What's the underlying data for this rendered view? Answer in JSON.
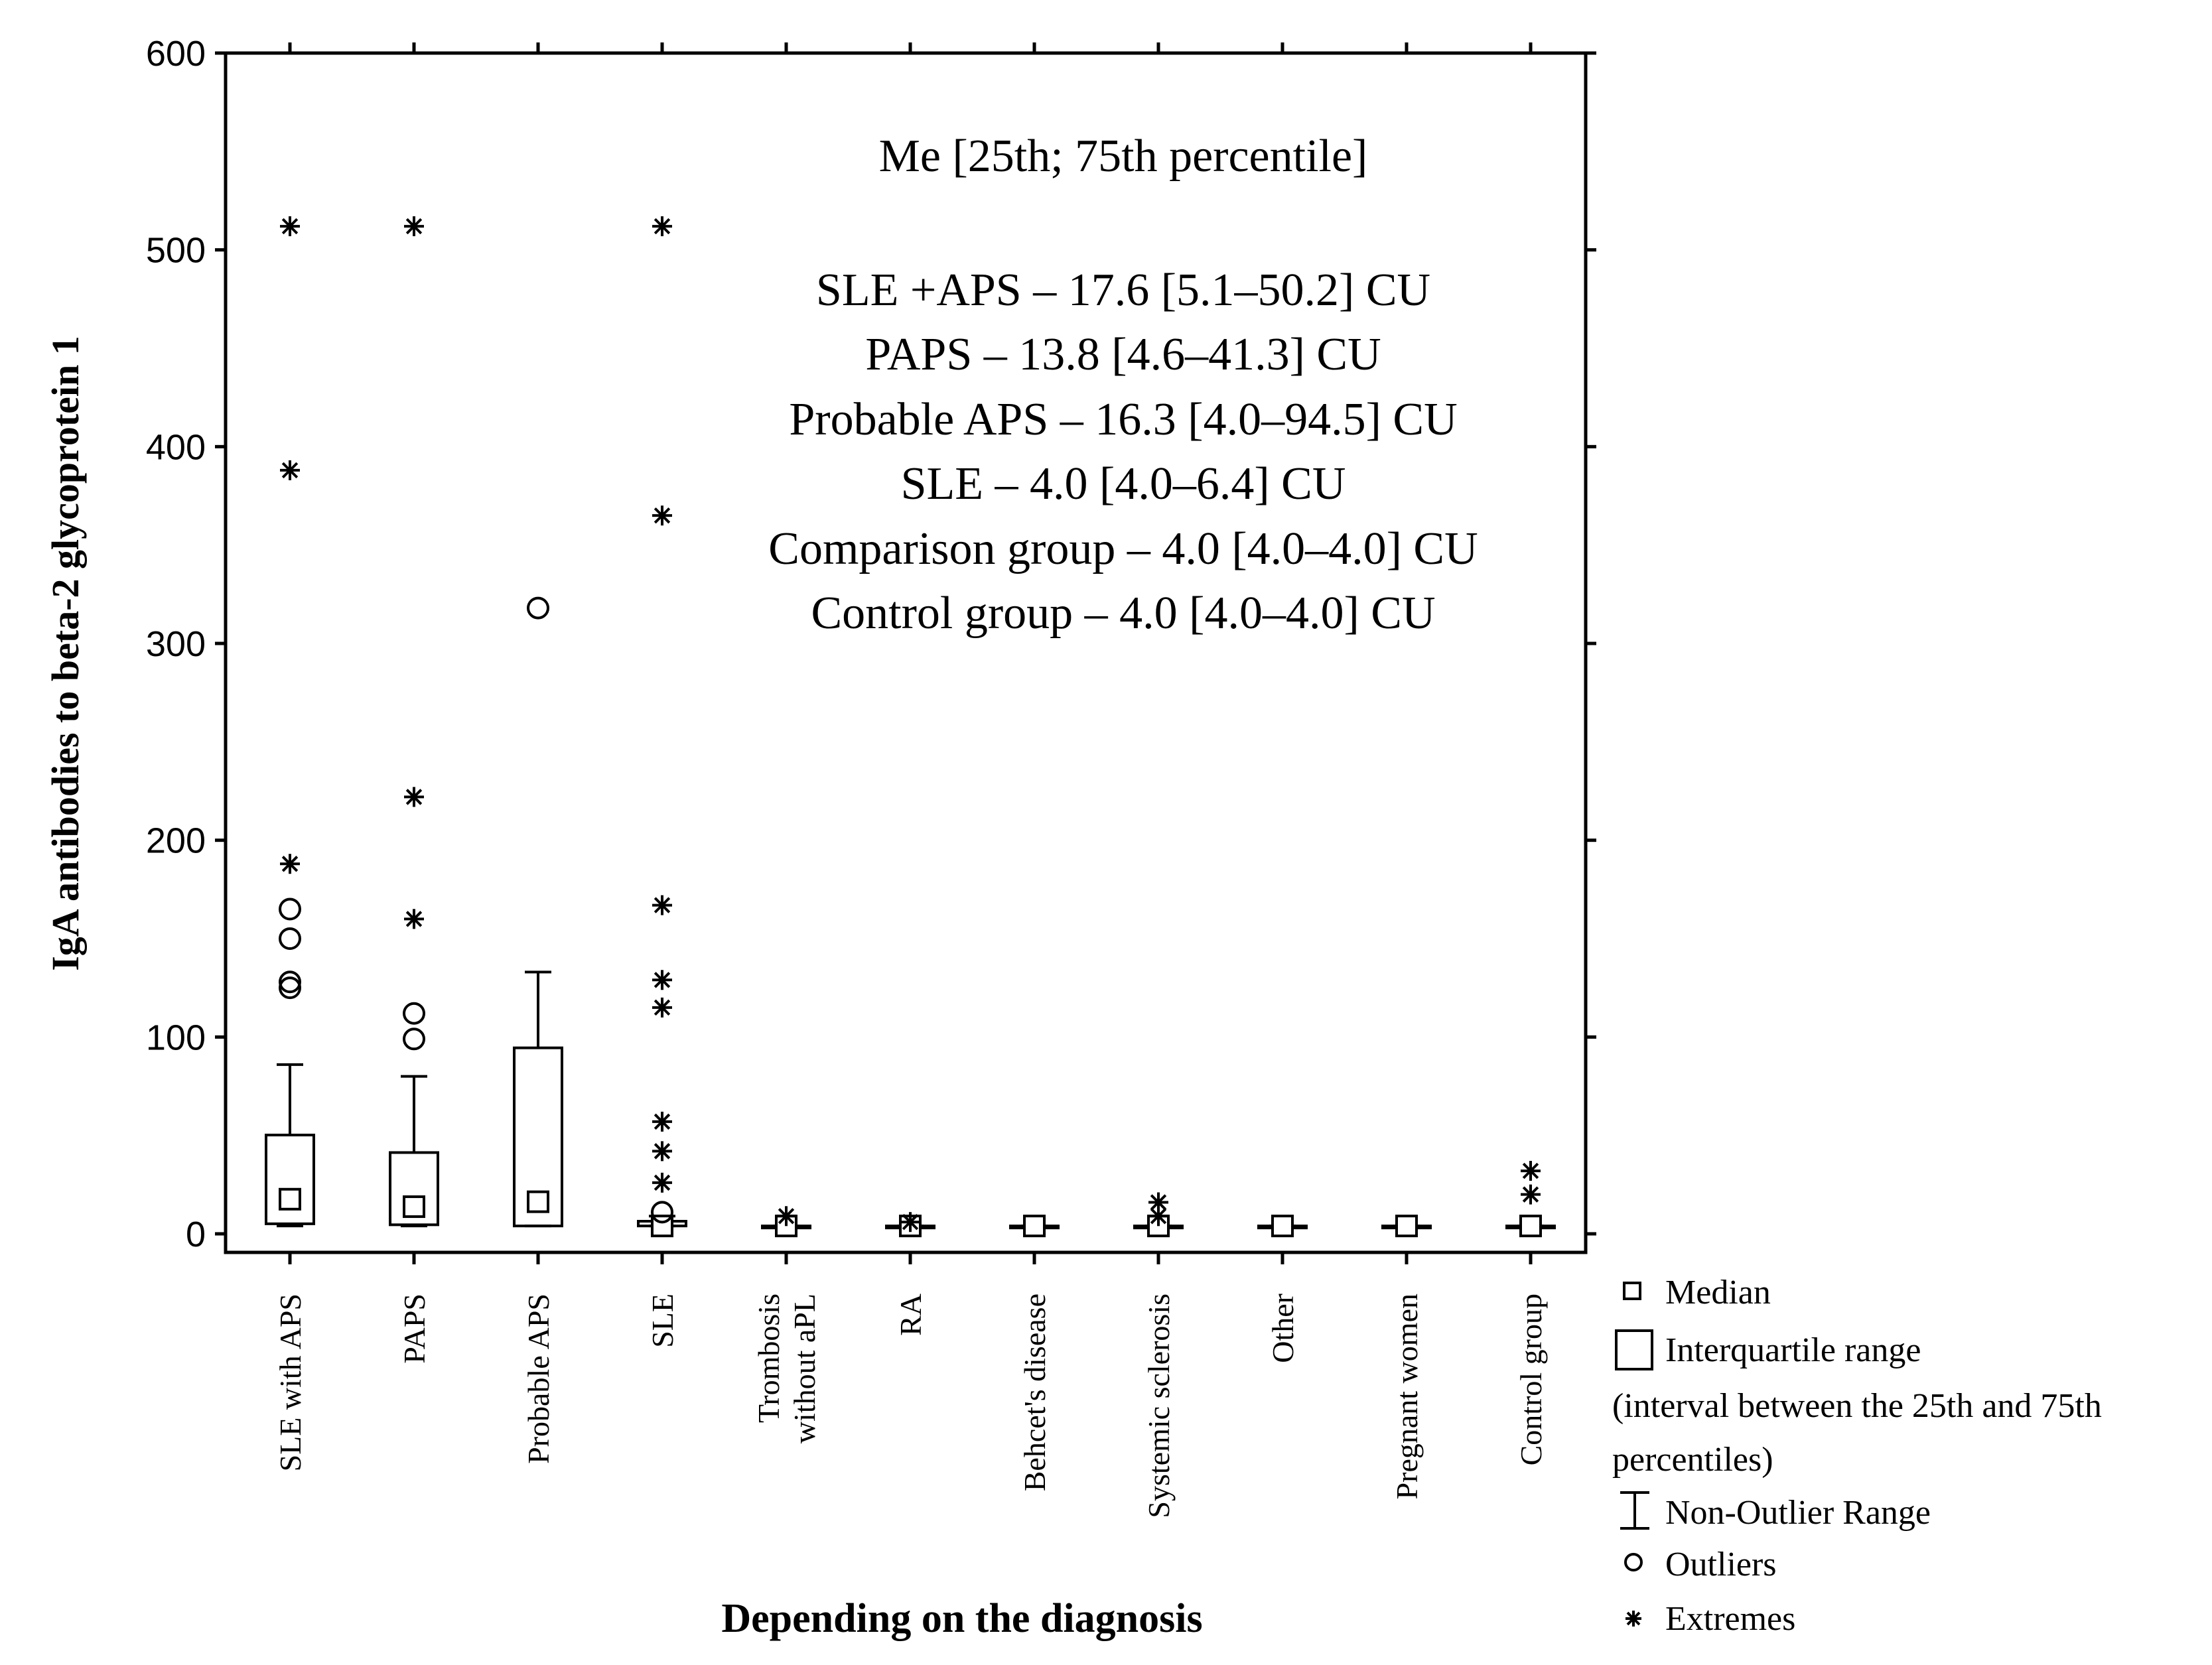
{
  "chart_data": {
    "type": "box",
    "title": "",
    "xlabel": "Depending on the diagnosis",
    "ylabel": "IgA  antibodies to beta-2 glycoprotein 1",
    "ylim": [
      0,
      600
    ],
    "yticks": [
      "0",
      "100",
      "200",
      "300",
      "400",
      "500",
      "600"
    ],
    "ytick_values": [
      0,
      100,
      200,
      300,
      400,
      500,
      600
    ],
    "grid": false,
    "categories": [
      [
        "SLE with APS"
      ],
      [
        "PAPS"
      ],
      [
        "Probable APS"
      ],
      [
        "SLE"
      ],
      [
        "Trombosis",
        "without aPL"
      ],
      [
        "RA"
      ],
      [
        "Behcet's disease"
      ],
      [
        "Systemic sclerosis"
      ],
      [
        "Other"
      ],
      [
        "Pregnant women"
      ],
      [
        "Control group"
      ]
    ],
    "boxes": [
      {
        "median": 17.6,
        "q1": 5.1,
        "q3": 50.2,
        "whisker_low": 4.0,
        "whisker_high": 86,
        "outliers": [
          125,
          128,
          150,
          165
        ],
        "extremes": [
          188,
          388,
          512
        ]
      },
      {
        "median": 13.8,
        "q1": 4.6,
        "q3": 41.3,
        "whisker_low": 4.0,
        "whisker_high": 80,
        "outliers": [
          99,
          112
        ],
        "extremes": [
          160,
          222,
          512
        ]
      },
      {
        "median": 16.3,
        "q1": 4.0,
        "q3": 94.5,
        "whisker_low": 4.0,
        "whisker_high": 133,
        "outliers": [
          318
        ],
        "extremes": []
      },
      {
        "median": 4.0,
        "q1": 4.0,
        "q3": 6.4,
        "whisker_low": 4.0,
        "whisker_high": 9,
        "outliers": [
          11
        ],
        "extremes": [
          26,
          42,
          57,
          115,
          129,
          167,
          365,
          512
        ]
      },
      {
        "median": 4.0,
        "q1": 4.0,
        "q3": 4.0,
        "whisker_low": 4.0,
        "whisker_high": 4.0,
        "outliers": [],
        "extremes": [
          9
        ]
      },
      {
        "median": 4.0,
        "q1": 4.0,
        "q3": 4.0,
        "whisker_low": 4.0,
        "whisker_high": 4.0,
        "outliers": [],
        "extremes": [
          6
        ]
      },
      {
        "median": 4.0,
        "q1": 4.0,
        "q3": 4.0,
        "whisker_low": 4.0,
        "whisker_high": 4.0,
        "outliers": [],
        "extremes": []
      },
      {
        "median": 4.0,
        "q1": 4.0,
        "q3": 4.0,
        "whisker_low": 4.0,
        "whisker_high": 4.0,
        "outliers": [],
        "extremes": [
          9,
          16
        ]
      },
      {
        "median": 4.0,
        "q1": 4.0,
        "q3": 4.0,
        "whisker_low": 4.0,
        "whisker_high": 4.0,
        "outliers": [],
        "extremes": []
      },
      {
        "median": 4.0,
        "q1": 4.0,
        "q3": 4.0,
        "whisker_low": 4.0,
        "whisker_high": 4.0,
        "outliers": [],
        "extremes": []
      },
      {
        "median": 4.0,
        "q1": 4.0,
        "q3": 4.0,
        "whisker_low": 4.0,
        "whisker_high": 4.0,
        "outliers": [],
        "extremes": [
          20,
          32
        ]
      }
    ],
    "annotations": [
      "Me [25th; 75th percentile]",
      "SLE +APS – 17.6 [5.1–50.2] CU",
      "PAPS – 13.8 [4.6–41.3] CU",
      "Probable APS – 16.3 [4.0–94.5] CU",
      "SLE – 4.0 [4.0–6.4] CU",
      "Comparison group – 4.0 [4.0–4.0] CU",
      "Control group – 4.0 [4.0–4.0] CU"
    ],
    "legend": {
      "placement": "bottom-right",
      "median": "Median",
      "iqr_line1": "Interquartile range",
      "iqr_line2": "(interval between the 25th and 75th",
      "iqr_line3": "percentiles)",
      "nonoutlier": "Non-Outlier Range",
      "outliers": "Outliers",
      "extremes": "Extremes"
    }
  }
}
